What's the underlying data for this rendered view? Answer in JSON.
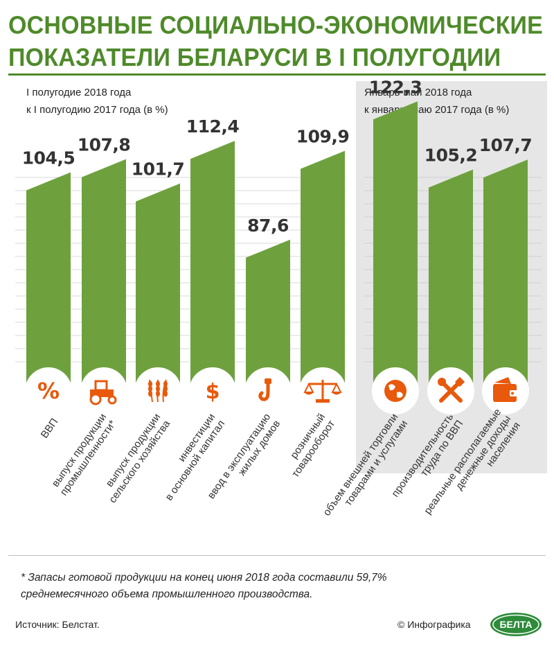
{
  "title_lines": [
    "ОСНОВНЫЕ СОЦИАЛЬНО-ЭКОНОМИЧЕСКИЕ",
    "ПОКАЗАТЕЛИ БЕЛАРУСИ В I ПОЛУГОДИИ"
  ],
  "left_group": {
    "subtitle_lines": [
      "I полугодие 2018 года",
      "к I полугодию 2017 года (в %)"
    ]
  },
  "right_group": {
    "subtitle_lines": [
      "Январь-май 2018 года",
      "к январю-маю 2017 года (в %)"
    ]
  },
  "colors": {
    "bar": "#6ea13e",
    "bar_shade": "#5d8f33",
    "title": "#4e8a2a",
    "icon": "#e8590c",
    "panel": "#e6e6e6"
  },
  "chart_data": {
    "type": "bar",
    "value_unit": "%",
    "groups": [
      {
        "label_key": "left_group",
        "categories": [
          {
            "label_lines": [
              "ВВП"
            ],
            "value": 104.5,
            "value_label": "104,5",
            "icon": "percent-icon"
          },
          {
            "label_lines": [
              "выпуск продукции",
              "промышленности*"
            ],
            "value": 107.8,
            "value_label": "107,8",
            "icon": "tractor-icon"
          },
          {
            "label_lines": [
              "выпуск продукции",
              "сельского хозяйства"
            ],
            "value": 101.7,
            "value_label": "101,7",
            "icon": "wheat-icon"
          },
          {
            "label_lines": [
              "инвестиции",
              "в основной капитал"
            ],
            "value": 112.4,
            "value_label": "112,4",
            "icon": "dollar-icon"
          },
          {
            "label_lines": [
              "ввод в эксплуатацию",
              "жилых домов"
            ],
            "value": 87.6,
            "value_label": "87,6",
            "icon": "crane-hook-icon"
          },
          {
            "label_lines": [
              "розничный",
              "товарооборот"
            ],
            "value": 109.9,
            "value_label": "109,9",
            "icon": "scales-icon"
          }
        ]
      },
      {
        "label_key": "right_group",
        "categories": [
          {
            "label_lines": [
              "объем внешней торговли",
              "товарами и услугами"
            ],
            "value": 122.3,
            "value_label": "122,3",
            "icon": "globe-icon"
          },
          {
            "label_lines": [
              "производительность",
              "труда по ВВП"
            ],
            "value": 105.2,
            "value_label": "105,2",
            "icon": "tools-icon"
          },
          {
            "label_lines": [
              "реальные располагаемые",
              "денежные доходы",
              "населения"
            ],
            "value": 107.7,
            "value_label": "107,7",
            "icon": "wallet-icon"
          }
        ]
      }
    ]
  },
  "footnote_lines": [
    "* Запасы готовой продукции на конец июня 2018 года составили 59,7%",
    "среднемесячного объема промышленного производства."
  ],
  "source": "Источник: Белстат.",
  "credit": "© Инфографика",
  "logo_text": "БЕЛТА"
}
